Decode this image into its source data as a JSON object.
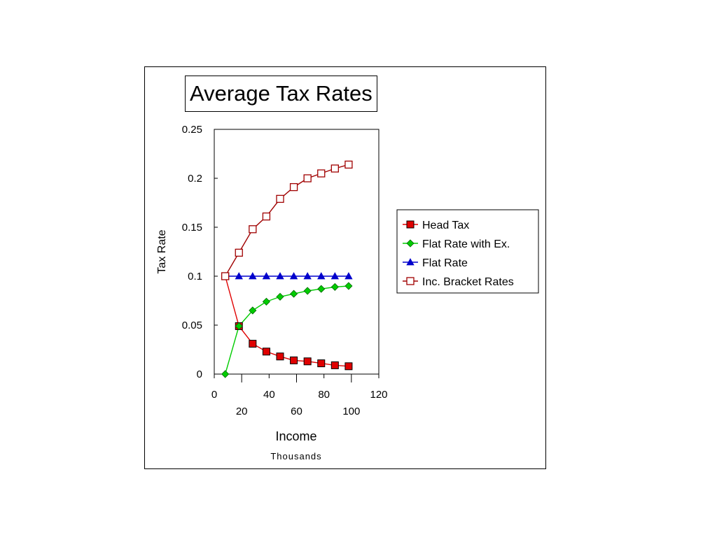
{
  "chart_data": {
    "type": "line",
    "title": "Average Tax Rates",
    "xlabel": "Income",
    "xlabel_sub": "Thousands",
    "ylabel": "Tax Rate",
    "xlim": [
      0,
      120
    ],
    "ylim": [
      0,
      0.25
    ],
    "x_ticks_top": [
      "0",
      "40",
      "80",
      "120"
    ],
    "x_ticks_bottom": [
      "20",
      "60",
      "100"
    ],
    "y_ticks": [
      "0",
      "0.05",
      "0.1",
      "0.15",
      "0.2",
      "0.25"
    ],
    "legend_position": "right",
    "x": [
      8,
      18,
      28,
      38,
      48,
      58,
      68,
      78,
      88,
      98
    ],
    "series": [
      {
        "name": "Head Tax",
        "color": "#e00000",
        "marker": "square-filled",
        "values": [
          0.1,
          0.049,
          0.031,
          0.023,
          0.018,
          0.014,
          0.013,
          0.011,
          0.009,
          0.008
        ]
      },
      {
        "name": "Flat Rate with Ex.",
        "color": "#00cc00",
        "marker": "diamond-filled",
        "values": [
          0.0,
          0.049,
          0.065,
          0.074,
          0.079,
          0.082,
          0.085,
          0.087,
          0.089,
          0.09
        ]
      },
      {
        "name": "Flat Rate",
        "color": "#0000cc",
        "marker": "triangle-filled",
        "values": [
          0.1,
          0.1,
          0.1,
          0.1,
          0.1,
          0.1,
          0.1,
          0.1,
          0.1,
          0.1
        ]
      },
      {
        "name": "Inc. Bracket Rates",
        "color": "#a00000",
        "marker": "square-open",
        "values": [
          0.1,
          0.124,
          0.148,
          0.161,
          0.179,
          0.191,
          0.2,
          0.205,
          0.21,
          0.214
        ]
      }
    ]
  }
}
